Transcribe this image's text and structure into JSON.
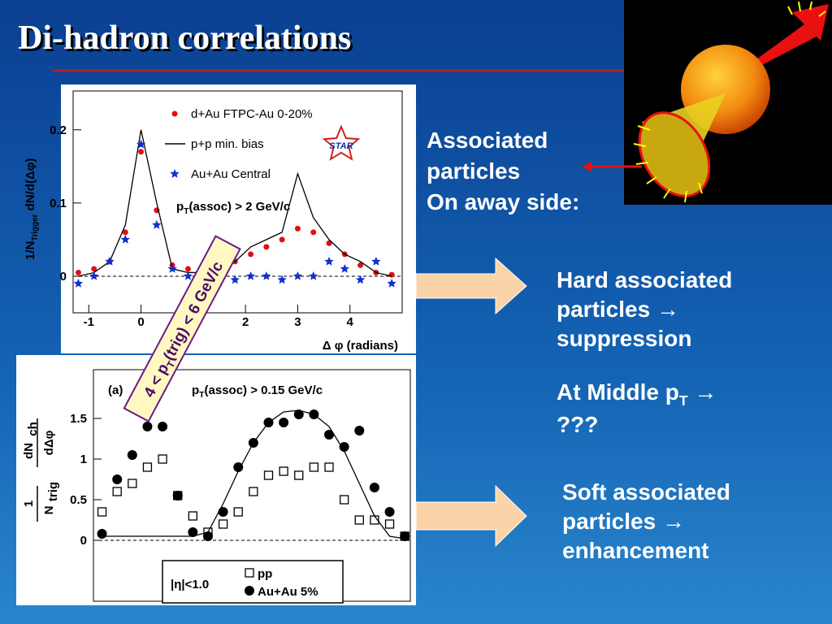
{
  "slide": {
    "title": "Di-hadron correlations",
    "away_side": [
      "Associated",
      "particles",
      "On away side:"
    ],
    "hard": [
      "Hard associated",
      "particles →",
      "suppression"
    ],
    "middle": [
      [
        "At Middle p",
        "T",
        " →"
      ],
      "???"
    ],
    "soft": [
      "Soft associated",
      "particles →",
      "enhancement"
    ],
    "trigger_label": [
      "4 < p",
      "T",
      "(trig) < 6 GeV/c"
    ]
  },
  "chart_data": [
    {
      "type": "scatter",
      "ylabel": [
        "1/N",
        "Trigger",
        " dN/d(Δφ)"
      ],
      "xlabel": "Δ φ (radians)",
      "logo": "STAR",
      "annotation": [
        "p",
        "T",
        "(assoc) > 2 GeV/c"
      ],
      "x": [
        -1.2,
        -0.9,
        -0.6,
        -0.3,
        0,
        0.3,
        0.6,
        0.9,
        1.2,
        1.5,
        1.8,
        2.1,
        2.4,
        2.7,
        3.0,
        3.3,
        3.6,
        3.9,
        4.2,
        4.5,
        4.8
      ],
      "series": [
        {
          "name": "d+Au FTPC-Au 0-20%",
          "color": "#e01010",
          "marker": "circle",
          "values": [
            0.005,
            0.01,
            0.02,
            0.06,
            0.17,
            0.09,
            0.015,
            0.01,
            0.005,
            0.01,
            0.02,
            0.03,
            0.04,
            0.05,
            0.065,
            0.06,
            0.045,
            0.03,
            0.015,
            0.005,
            0.002
          ]
        },
        {
          "name": "p+p min. bias",
          "color": "#000000",
          "marker": "line",
          "values": [
            0,
            0.005,
            0.02,
            0.07,
            0.2,
            0.1,
            0.01,
            0.005,
            0.005,
            0.01,
            0.02,
            0.04,
            0.05,
            0.06,
            0.14,
            0.08,
            0.05,
            0.03,
            0.02,
            0.005,
            0
          ]
        },
        {
          "name": "Au+Au Central",
          "color": "#1030d0",
          "marker": "star",
          "values": [
            -0.01,
            0,
            0.02,
            0.05,
            0.18,
            0.07,
            0.01,
            0,
            -0.005,
            0,
            -0.005,
            0,
            0,
            -0.005,
            0,
            0,
            0.02,
            0.01,
            -0.005,
            0.02,
            -0.01
          ]
        }
      ],
      "xlim": [
        -1.3,
        5
      ],
      "ylim": [
        -0.05,
        0.253
      ],
      "xticks": [
        -1,
        0,
        2,
        3,
        4
      ],
      "yticks": [
        0,
        0.1,
        0.2
      ]
    },
    {
      "type": "scatter",
      "ylabel": {
        "num1": "1",
        "den1": [
          "N",
          "trig"
        ],
        "num2": [
          "dN",
          "ch"
        ],
        "den2": "dΔφ"
      },
      "panel": "(a)",
      "annotation": [
        "p",
        "T",
        "(assoc) > 0.15 GeV/c"
      ],
      "legend_title": "|η|<1.0",
      "x": [
        -1.4,
        -1.1,
        -0.8,
        -0.5,
        -0.2,
        0.1,
        0.4,
        0.7,
        1.0,
        1.3,
        1.6,
        1.9,
        2.2,
        2.5,
        2.8,
        3.1,
        3.4,
        3.7,
        4.0,
        4.3,
        4.6
      ],
      "series": [
        {
          "name": "pp",
          "color": "#000000",
          "marker": "square",
          "values": [
            0.35,
            0.6,
            0.7,
            0.9,
            1.0,
            0.55,
            0.3,
            0.1,
            0.2,
            0.35,
            0.6,
            0.8,
            0.85,
            0.8,
            0.9,
            0.9,
            0.5,
            0.25,
            0.25,
            0.2,
            0.05
          ]
        },
        {
          "name": "Au+Au 5%",
          "color": "#000000",
          "marker": "filled-circle",
          "values": [
            0.08,
            0.75,
            1.05,
            1.4,
            1.4,
            0.55,
            0.1,
            0.05,
            0.35,
            0.9,
            1.2,
            1.45,
            1.45,
            1.55,
            1.55,
            1.3,
            1.15,
            1.35,
            0.65,
            0.35,
            0.05
          ]
        },
        {
          "color": "#000000",
          "marker": "line",
          "values": [
            0.05,
            0.05,
            0.05,
            0.05,
            0.05,
            0.05,
            0.05,
            0.1,
            0.45,
            0.85,
            1.2,
            1.45,
            1.58,
            1.6,
            1.55,
            1.4,
            1.1,
            0.7,
            0.3,
            0.05,
            0.02
          ]
        }
      ],
      "xlim": [
        -1.57,
        4.71
      ],
      "ylim": [
        -0.75,
        2.1
      ],
      "yticks": [
        0,
        0.5,
        1,
        1.5
      ]
    }
  ]
}
